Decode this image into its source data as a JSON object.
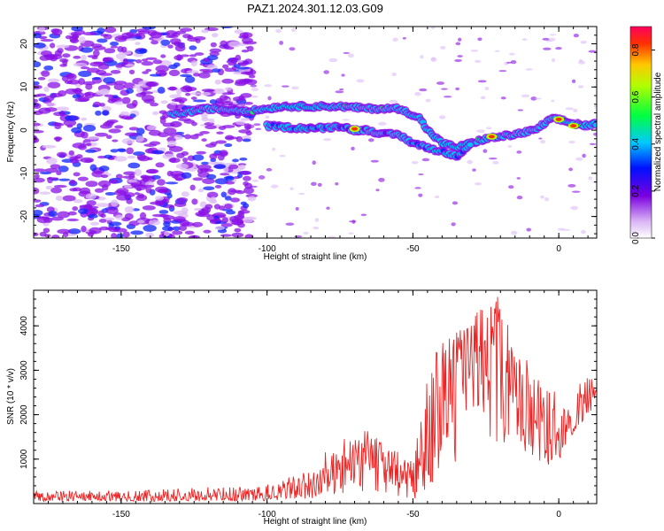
{
  "title": "PAZ1.2024.301.12.03.G09",
  "chart_data": [
    {
      "type": "heatmap",
      "xlabel": "Height of straight line (km)",
      "ylabel": "Frequency (Hz)",
      "xlim": [
        -180,
        13
      ],
      "ylim": [
        -25,
        24
      ],
      "xticks": [
        -150,
        -100,
        -50,
        0
      ],
      "yticks": [
        20,
        10,
        0,
        -10,
        -20
      ],
      "colorbar": {
        "label": "Normalized spectral amplitude",
        "range": [
          0,
          0.9
        ],
        "ticks": [
          0.0,
          0.2,
          0.4,
          0.6,
          0.8
        ],
        "colormap": "rainbow (white/purple low -> red high)"
      },
      "ridge_upper": {
        "x": [
          -133,
          -120,
          -105,
          -95,
          -85,
          -75,
          -65,
          -55,
          -48,
          -45,
          -40,
          -35,
          -30,
          -25,
          -15,
          -8,
          -3,
          0,
          5,
          10,
          13
        ],
        "y": [
          3.5,
          5,
          4.5,
          5.5,
          5.5,
          5.5,
          5,
          5,
          3,
          0,
          -3,
          -4,
          -3,
          -2,
          -1,
          0,
          2.5,
          2.5,
          1.5,
          1,
          1.5
        ]
      },
      "ridge_lower": {
        "x": [
          -100,
          -90,
          -80,
          -75,
          -70,
          -65,
          -60,
          -55,
          -50,
          -45,
          -40,
          -35,
          -30
        ],
        "y": [
          1,
          0.5,
          0.5,
          1,
          0,
          0,
          -1,
          -1,
          -3,
          -4,
          -5,
          -6,
          -3
        ]
      },
      "peaks": [
        {
          "x": -70,
          "y": 0.3,
          "value": 0.9
        },
        {
          "x": -23,
          "y": -1.5,
          "value": 0.9
        },
        {
          "x": 0,
          "y": 2.5,
          "value": 0.9
        },
        {
          "x": 5,
          "y": 1,
          "value": 0.9
        }
      ]
    },
    {
      "type": "line",
      "xlabel": "Height of straight line (km)",
      "ylabel": "SNR (10 * v/v)",
      "xlim": [
        -180,
        13
      ],
      "ylim": [
        0,
        4800
      ],
      "xticks": [
        -150,
        -100,
        -50,
        0
      ],
      "yticks": [
        1000,
        2000,
        3000,
        4000
      ],
      "series": [
        {
          "color": "#ee2222",
          "x": [
            -180,
            -170,
            -160,
            -150,
            -140,
            -130,
            -120,
            -110,
            -105,
            -100,
            -95,
            -90,
            -85,
            -80,
            -75,
            -70,
            -66,
            -62,
            -58,
            -54,
            -50,
            -48,
            -46,
            -44,
            -42,
            -40,
            -38,
            -36,
            -34,
            -32,
            -30,
            -28,
            -26,
            -24,
            -22,
            -20,
            -18,
            -16,
            -14,
            -12,
            -10,
            -8,
            -6,
            -4,
            -2,
            0,
            2,
            4,
            6,
            8,
            10,
            12,
            13
          ],
          "y": [
            150,
            140,
            150,
            150,
            160,
            170,
            180,
            200,
            210,
            250,
            300,
            350,
            450,
            550,
            700,
            900,
            1100,
            1000,
            900,
            700,
            600,
            1000,
            1500,
            2000,
            2300,
            2500,
            2700,
            2800,
            3000,
            3100,
            3300,
            3500,
            3400,
            3300,
            3500,
            3200,
            2900,
            2500,
            2400,
            2300,
            2100,
            2000,
            1900,
            1800,
            1700,
            1600,
            1700,
            1900,
            2100,
            2300,
            2400,
            2500,
            2450
          ],
          "envelope_max": [
            300,
            290,
            290,
            300,
            320,
            350,
            370,
            400,
            420,
            500,
            650,
            800,
            1000,
            1200,
            1450,
            1500,
            1700,
            1450,
            1300,
            1100,
            1000,
            1700,
            2800,
            3200,
            3400,
            3600,
            3700,
            3800,
            3900,
            3900,
            4000,
            4300,
            4400,
            4200,
            4800,
            4500,
            4100,
            3800,
            3600,
            3300,
            3200,
            3000,
            2900,
            2800,
            2600,
            2400,
            2500,
            2600,
            2700,
            2900,
            3000,
            2700,
            2500
          ],
          "envelope_min": [
            50,
            40,
            50,
            50,
            50,
            50,
            50,
            40,
            60,
            60,
            80,
            100,
            120,
            150,
            180,
            200,
            250,
            200,
            150,
            100,
            80,
            100,
            200,
            300,
            400,
            500,
            600,
            700,
            800,
            900,
            1000,
            1200,
            1100,
            1000,
            1200,
            1000,
            1500,
            1600,
            1500,
            1200,
            1100,
            1000,
            900,
            900,
            800,
            900,
            1300,
            1500,
            1700,
            1800,
            1900,
            2000,
            2000
          ]
        }
      ]
    }
  ]
}
